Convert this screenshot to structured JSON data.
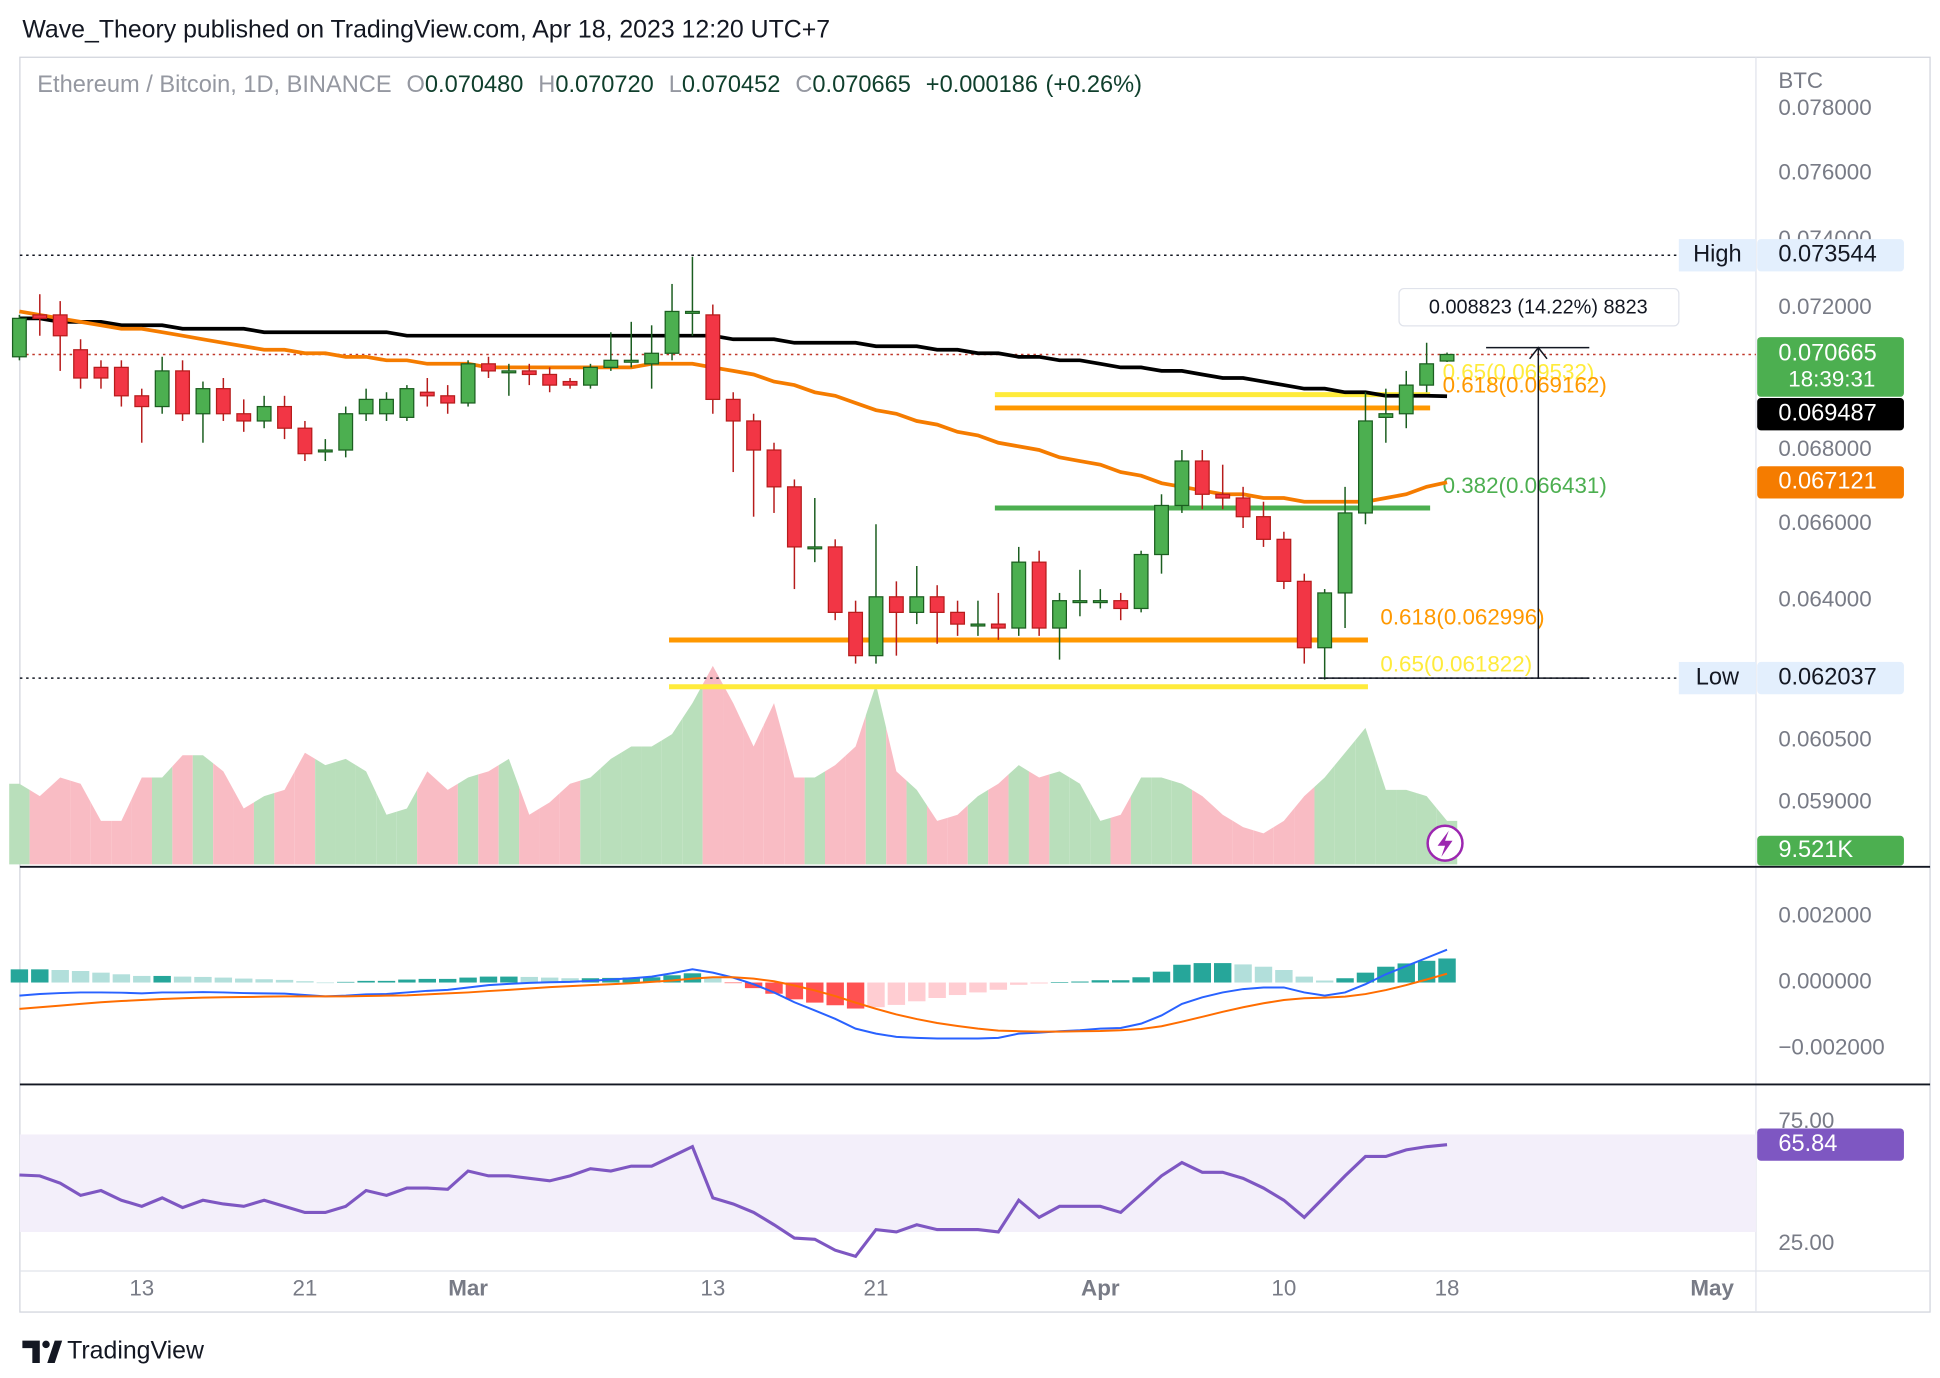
{
  "header": {
    "publisher": "Wave_Theory published on TradingView.com, Apr 18, 2023 12:20 UTC+7"
  },
  "footer": {
    "brand": "TradingView"
  },
  "chart_data": {
    "type": "candlestick",
    "title": "Ethereum / Bitcoin, 1D, BINANCE",
    "legend_values": [
      {
        "key": "O",
        "value": {
          "value": 0.07048,
          "label": "0.070480"
        }
      },
      {
        "key": "H",
        "value": {
          "value": 0.07072,
          "label": "0.070720"
        }
      },
      {
        "key": "L",
        "value": 0.070452
      },
      {
        "key": "C",
        "value": 0.070665
      }
    ],
    "change": {
      "value": 0.000186,
      "label": "+0.000186"
    },
    "change_pct": {
      "value": 0.26,
      "label": "(+0.26%)"
    },
    "currency": "BTC",
    "log_scale": true,
    "grid": false,
    "up_color": "#4caf50",
    "down_color": "#f23645",
    "categories": [
      null,
      null,
      null,
      null,
      null,
      null,
      "13",
      null,
      null,
      null,
      null,
      null,
      null,
      null,
      "21",
      null,
      null,
      null,
      null,
      null,
      null,
      null,
      "Mar",
      null,
      null,
      null,
      null,
      null,
      null,
      null,
      null,
      null,
      null,
      null,
      "13",
      null,
      null,
      null,
      null,
      null,
      null,
      null,
      "21",
      null,
      null,
      null,
      null,
      null,
      null,
      null,
      null,
      null,
      null,
      "Apr",
      null,
      null,
      null,
      null,
      null,
      null,
      null,
      null,
      "10",
      null,
      null,
      null,
      null,
      null,
      null,
      null,
      "18",
      null,
      null,
      null,
      null,
      null,
      null,
      null,
      null,
      null,
      null,
      null,
      null,
      "May"
    ],
    "open": [
      0.0706,
      0.0718,
      0.0718,
      0.0708,
      0.0703,
      0.0703,
      0.0695,
      0.0692,
      0.0702,
      0.069,
      0.0697,
      0.069,
      0.0688,
      0.0692,
      0.0686,
      0.068,
      0.068,
      0.069,
      0.069,
      0.0689,
      0.0696,
      0.0695,
      0.0693,
      0.0704,
      0.0702,
      0.0702,
      0.0701,
      0.0699,
      0.0698,
      0.0703,
      0.0705,
      0.0704,
      0.0707,
      0.0719,
      0.0718,
      0.0694,
      0.0688,
      0.068,
      0.067,
      0.0654,
      0.0654,
      0.0637,
      0.0626,
      0.0641,
      0.0637,
      0.0641,
      0.0637,
      0.0634,
      0.0634,
      0.0633,
      0.065,
      0.0633,
      0.064,
      0.064,
      0.064,
      0.0638,
      0.0652,
      0.0665,
      0.0677,
      0.0668,
      0.0667,
      0.0662,
      0.0656,
      0.0645,
      0.0628,
      0.0642,
      0.0663,
      0.0689,
      0.069,
      0.0698,
      0.07048,
      null,
      null,
      null,
      null,
      null,
      null,
      null,
      null,
      null,
      null,
      null,
      null,
      null
    ],
    "high": [
      0.0718,
      0.0724,
      0.0722,
      0.0711,
      0.0705,
      0.0705,
      0.0697,
      0.0706,
      0.0705,
      0.0699,
      0.07,
      0.0694,
      0.0695,
      0.0695,
      0.0688,
      0.0683,
      0.0692,
      0.0697,
      0.0696,
      0.0698,
      0.07,
      0.0698,
      0.0705,
      0.0706,
      0.0704,
      0.0704,
      0.0703,
      0.07,
      0.0704,
      0.0713,
      0.0716,
      0.0715,
      0.0727,
      0.0735,
      0.0721,
      0.0696,
      0.069,
      0.0682,
      0.0672,
      0.0667,
      0.0656,
      0.064,
      0.066,
      0.0645,
      0.0649,
      0.0644,
      0.064,
      0.064,
      0.0642,
      0.0654,
      0.0653,
      0.0642,
      0.0648,
      0.0643,
      0.0642,
      0.0653,
      0.0668,
      0.068,
      0.068,
      0.0676,
      0.067,
      0.0666,
      0.0658,
      0.0647,
      0.0643,
      0.067,
      0.0696,
      0.0697,
      0.0702,
      0.071,
      0.07072,
      null,
      null,
      null,
      null,
      null,
      null,
      null,
      null,
      null,
      null,
      null,
      null,
      null
    ],
    "low": [
      0.0705,
      0.0712,
      0.0702,
      0.0697,
      0.0697,
      0.0692,
      0.0682,
      0.069,
      0.0688,
      0.0682,
      0.0688,
      0.0685,
      0.0686,
      0.0683,
      0.0677,
      0.0677,
      0.0678,
      0.0688,
      0.0688,
      0.0688,
      0.0692,
      0.069,
      0.0692,
      0.07,
      0.0695,
      0.0698,
      0.0696,
      0.0697,
      0.0697,
      0.0702,
      0.0703,
      0.0697,
      0.0705,
      0.0712,
      0.069,
      0.0674,
      0.0662,
      0.0663,
      0.0643,
      0.065,
      0.0635,
      0.0624,
      0.0624,
      0.0626,
      0.0634,
      0.0629,
      0.0631,
      0.0631,
      0.063,
      0.0631,
      0.0631,
      0.0625,
      0.0636,
      0.0638,
      0.0635,
      0.0637,
      0.0647,
      0.0663,
      0.0664,
      0.0664,
      0.0659,
      0.0654,
      0.0643,
      0.0624,
      0.062,
      0.0633,
      0.066,
      0.0682,
      0.0686,
      0.0696,
      0.070452,
      null,
      null,
      null,
      null,
      null,
      null,
      null,
      null,
      null,
      null,
      null,
      null,
      null
    ],
    "close": [
      0.0717,
      0.0717,
      0.0712,
      0.07,
      0.07,
      0.0695,
      0.0692,
      0.0702,
      0.069,
      0.0697,
      0.069,
      0.0688,
      0.0692,
      0.0686,
      0.0679,
      0.068,
      0.069,
      0.0694,
      0.0694,
      0.0697,
      0.0695,
      0.0693,
      0.0704,
      0.0702,
      0.0702,
      0.0701,
      0.0698,
      0.0698,
      0.0703,
      0.0705,
      0.0705,
      0.0707,
      0.0719,
      0.0719,
      0.0694,
      0.0688,
      0.068,
      0.067,
      0.0654,
      0.0654,
      0.0637,
      0.0626,
      0.0641,
      0.0637,
      0.0641,
      0.0637,
      0.0634,
      0.0634,
      0.0633,
      0.065,
      0.0633,
      0.064,
      0.064,
      0.064,
      0.0638,
      0.0652,
      0.0665,
      0.0677,
      0.0668,
      0.0667,
      0.0662,
      0.0656,
      0.0645,
      0.0628,
      0.0642,
      0.0663,
      0.0688,
      0.069,
      0.0698,
      0.0704,
      0.070665,
      null,
      null,
      null,
      null,
      null,
      null,
      null,
      null,
      null,
      null,
      null,
      null,
      null
    ],
    "ylim": [
      0.0575,
      0.0783
    ],
    "yticks": [
      {
        "value": 0.078,
        "label": "0.078000"
      },
      {
        "value": 0.076,
        "label": "0.076000"
      },
      {
        "value": 0.074,
        "label": "0.074000"
      },
      {
        "value": 0.072,
        "label": "0.072000"
      },
      {
        "value": 0.068,
        "label": "0.068000"
      },
      {
        "value": 0.066,
        "label": "0.066000"
      },
      {
        "value": 0.064,
        "label": "0.064000"
      },
      {
        "value": 0.0605,
        "label": "0.060500"
      },
      {
        "value": 0.059,
        "label": "0.059000"
      }
    ],
    "volume": {
      "values": [
        17680,
        14960,
        19040,
        17680,
        9520,
        9520,
        19040,
        19040,
        23936,
        23936,
        20400,
        12240,
        14960,
        16320,
        24480,
        21760,
        23120,
        20400,
        10880,
        12240,
        20400,
        16320,
        19040,
        20400,
        23120,
        10880,
        13600,
        17680,
        19040,
        23120,
        25840,
        25840,
        28560,
        35360,
        43520,
        35360,
        25840,
        35360,
        19040,
        19040,
        21760,
        25840,
        39440,
        20400,
        16320,
        9520,
        10880,
        14960,
        17680,
        21760,
        19040,
        20400,
        17680,
        9520,
        10880,
        19040,
        19040,
        17680,
        14960,
        10880,
        8160,
        6800,
        9520,
        14960,
        19040,
        24480,
        29920,
        16320,
        16320,
        14960,
        9521,
        null,
        null,
        null,
        null,
        null,
        null,
        null,
        null,
        null,
        null,
        null,
        null,
        null
      ],
      "last": {
        "value": 9521,
        "label": "9.521K"
      },
      "ylim": [
        0,
        60000
      ],
      "up_color": "#b9dfbb",
      "down_color": "#f9bcc4",
      "last_color": "#4caf50"
    },
    "moving_averages": [
      {
        "color": "#000000",
        "last": 0.069487,
        "values": [
          0.0717,
          0.0717,
          0.0716,
          0.0716,
          0.0716,
          0.0715,
          0.0715,
          0.0715,
          0.0714,
          0.0714,
          0.0714,
          0.0714,
          0.0713,
          0.0713,
          0.0713,
          0.0713,
          0.0713,
          0.0713,
          0.0713,
          0.0712,
          0.0712,
          0.0712,
          0.0712,
          0.0712,
          0.0712,
          0.0712,
          0.0712,
          0.0712,
          0.0712,
          0.0712,
          0.0712,
          0.0712,
          0.0712,
          0.0712,
          0.0712,
          0.0711,
          0.0711,
          0.0711,
          0.071,
          0.071,
          0.071,
          0.071,
          0.0709,
          0.0709,
          0.0709,
          0.0708,
          0.0708,
          0.0707,
          0.0707,
          0.0706,
          0.0706,
          0.0705,
          0.0705,
          0.0704,
          0.0703,
          0.0703,
          0.0702,
          0.0702,
          0.0701,
          0.07,
          0.07,
          0.0699,
          0.0698,
          0.0697,
          0.0697,
          0.0696,
          0.0696,
          0.0695,
          0.0695,
          0.0695,
          0.069487,
          null,
          null,
          null,
          null,
          null,
          null,
          null,
          null,
          null,
          null,
          null,
          null,
          null
        ]
      },
      {
        "color": "#f57c00",
        "last": 0.067121,
        "values": [
          0.0719,
          0.0718,
          0.0717,
          0.0716,
          0.0715,
          0.0714,
          0.0714,
          0.0713,
          0.0712,
          0.0711,
          0.071,
          0.0709,
          0.0708,
          0.0708,
          0.0707,
          0.0707,
          0.0706,
          0.0706,
          0.0705,
          0.0705,
          0.0704,
          0.0704,
          0.0704,
          0.0703,
          0.0703,
          0.0703,
          0.0703,
          0.0703,
          0.0703,
          0.0703,
          0.0703,
          0.0704,
          0.0704,
          0.0704,
          0.0703,
          0.0702,
          0.0701,
          0.0699,
          0.0698,
          0.0696,
          0.0695,
          0.0693,
          0.0691,
          0.069,
          0.0688,
          0.0687,
          0.0685,
          0.0684,
          0.0682,
          0.0681,
          0.068,
          0.0678,
          0.0677,
          0.0676,
          0.0674,
          0.0673,
          0.0671,
          0.067,
          0.0669,
          0.0668,
          0.0668,
          0.0667,
          0.0667,
          0.0666,
          0.0666,
          0.0666,
          0.0666,
          0.0667,
          0.0668,
          0.067,
          0.067121,
          null,
          null,
          null,
          null,
          null,
          null,
          null,
          null,
          null,
          null,
          null,
          null,
          null
        ]
      }
    ],
    "high_marker": {
      "name": "High",
      "value": 0.073544
    },
    "low_marker": {
      "name": "Low",
      "value": 0.062037
    },
    "last_price": {
      "value": 0.070665,
      "countdown": "18:39:31",
      "color": "#4caf50",
      "line_color": "#c0392b"
    },
    "fib_levels": [
      {
        "label": "0.65(0.069532)",
        "value": 0.069532,
        "color": "#ffeb3b"
      },
      {
        "label": "0.618(0.069162)",
        "value": 0.069162,
        "color": "#ff9800"
      },
      {
        "label": "0.382(0.066431)",
        "value": 0.066431,
        "color": "#4caf50"
      },
      {
        "label": "0.618(0.062996)",
        "value": 0.062996,
        "color": "#ff9800"
      },
      {
        "label": "0.65(0.061822)",
        "value": 0.061822,
        "color": "#ffeb3b"
      }
    ],
    "measure": {
      "label": "0.008823 (14.22%) 8823",
      "from": 0.062037,
      "to": 0.07086
    },
    "macd": {
      "macd_color": "#2962ff",
      "signal_color": "#ff6d00",
      "hist_colors": [
        "#26a69a",
        "#b2dfdb",
        "#ff5252",
        "#ffcdd2"
      ],
      "ylim": [
        -0.00302,
        0.0034
      ],
      "yticks": [
        {
          "value": 0.002,
          "label": "0.002000"
        },
        {
          "value": 0,
          "label": "0.000000"
        },
        {
          "value": -0.002,
          "label": "−0.002000"
        }
      ],
      "macd": [
        -0.0004,
        -0.00035,
        -0.00032,
        -0.0003,
        -0.0003,
        -0.00031,
        -0.00033,
        -0.0003,
        -0.0003,
        -0.00029,
        -0.0003,
        -0.00032,
        -0.00033,
        -0.00034,
        -0.00038,
        -0.00042,
        -0.0004,
        -0.00036,
        -0.00035,
        -0.0003,
        -0.00025,
        -0.00022,
        -0.00015,
        -8e-05,
        -4e-05,
        -1e-05,
        1e-05,
        2e-05,
        5e-05,
        9e-05,
        0.00013,
        0.00018,
        0.00028,
        0.0004,
        0.0003,
        0.00015,
        -5e-05,
        -0.0003,
        -0.0006,
        -0.00085,
        -0.0011,
        -0.0014,
        -0.00155,
        -0.00165,
        -0.00168,
        -0.0017,
        -0.0017,
        -0.0017,
        -0.00168,
        -0.00155,
        -0.00152,
        -0.00148,
        -0.00145,
        -0.0014,
        -0.00138,
        -0.00125,
        -0.001,
        -0.00065,
        -0.00045,
        -0.0003,
        -0.0002,
        -0.00015,
        -0.00015,
        -0.0003,
        -0.0004,
        -0.0003,
        -5e-05,
        0.00025,
        0.0005,
        0.00075,
        0.001,
        null,
        null,
        null,
        null,
        null,
        null,
        null,
        null,
        null,
        null,
        null,
        null,
        null
      ],
      "signal": [
        -0.0008,
        -0.00075,
        -0.0007,
        -0.00065,
        -0.0006,
        -0.00056,
        -0.00053,
        -0.0005,
        -0.00048,
        -0.00046,
        -0.00045,
        -0.00044,
        -0.00043,
        -0.00042,
        -0.00042,
        -0.00042,
        -0.00042,
        -0.00041,
        -0.0004,
        -0.00039,
        -0.00036,
        -0.00033,
        -0.0003,
        -0.00026,
        -0.00022,
        -0.00018,
        -0.00014,
        -0.00011,
        -8e-05,
        -5e-05,
        -2e-05,
        2e-05,
        6e-05,
        0.00012,
        0.00016,
        0.00016,
        0.00012,
        4e-05,
        -9e-05,
        -0.00024,
        -0.00041,
        -0.00061,
        -0.0008,
        -0.00097,
        -0.00111,
        -0.00123,
        -0.00132,
        -0.0014,
        -0.00146,
        -0.00148,
        -0.00149,
        -0.00149,
        -0.00148,
        -0.00147,
        -0.00145,
        -0.00141,
        -0.00133,
        -0.00119,
        -0.00104,
        -0.00089,
        -0.00075,
        -0.00063,
        -0.00053,
        -0.00048,
        -0.00046,
        -0.00043,
        -0.00035,
        -0.00023,
        -8e-05,
        9e-05,
        0.00027,
        null,
        null,
        null,
        null,
        null,
        null,
        null,
        null,
        null,
        null,
        null,
        null,
        null
      ],
      "histogram": [
        0.0004,
        0.0004,
        0.00038,
        0.00035,
        0.0003,
        0.00025,
        0.0002,
        0.0002,
        0.00018,
        0.00017,
        0.00015,
        0.00012,
        0.0001,
        8e-05,
        4e-05,
        0,
        2e-05,
        5e-05,
        5e-05,
        9e-05,
        0.00011,
        0.00011,
        0.00015,
        0.00018,
        0.00018,
        0.00017,
        0.00015,
        0.00013,
        0.00013,
        0.00014,
        0.00015,
        0.00016,
        0.00022,
        0.00028,
        0.00014,
        -1e-05,
        -0.00017,
        -0.00034,
        -0.00051,
        -0.00061,
        -0.00069,
        -0.00079,
        -0.00075,
        -0.00068,
        -0.00057,
        -0.00047,
        -0.00038,
        -0.0003,
        -0.00022,
        -7e-05,
        -3e-05,
        1e-05,
        3e-05,
        7e-05,
        7e-05,
        0.00016,
        0.00033,
        0.00054,
        0.00059,
        0.00059,
        0.00055,
        0.00048,
        0.00038,
        0.00018,
        6e-05,
        0.00013,
        0.0003,
        0.00048,
        0.00058,
        0.00066,
        0.00073,
        null,
        null,
        null,
        null,
        null,
        null,
        null,
        null,
        null,
        null,
        null,
        null,
        null
      ]
    },
    "rsi": {
      "color": "#7e57c2",
      "band_color": "#f3effa",
      "band": [
        30,
        70
      ],
      "ylim": [
        14,
        90
      ],
      "yticks": [
        {
          "value": 75,
          "label": "75.00"
        },
        {
          "value": 25,
          "label": "25.00"
        }
      ],
      "last": 65.84,
      "values": [
        53.4,
        53,
        50,
        45,
        47,
        43,
        40.5,
        44,
        40,
        43,
        41.5,
        40.5,
        43,
        40.5,
        38,
        38,
        40.5,
        47,
        45,
        48,
        48,
        47.5,
        55,
        53,
        53,
        52,
        51,
        53,
        56,
        55,
        57,
        57,
        61,
        65,
        44,
        41.5,
        38,
        33,
        27.5,
        27,
        22.5,
        20,
        31,
        30,
        33,
        31,
        31,
        31,
        30,
        43,
        36,
        40.5,
        40.5,
        40.5,
        38,
        45.5,
        53,
        58.5,
        54.5,
        54.5,
        52,
        48,
        43,
        36,
        44.5,
        53,
        61,
        61,
        63.7,
        65,
        65.84,
        null,
        null,
        null,
        null,
        null,
        null,
        null,
        null,
        null,
        null,
        null,
        null,
        null
      ]
    }
  }
}
